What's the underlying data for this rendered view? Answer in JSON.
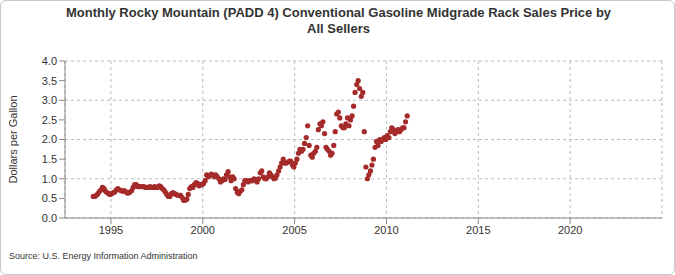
{
  "chart_data": {
    "type": "scatter",
    "title": "Monthly Rocky Mountain (PADD 4) Conventional Gasoline Midgrade Rack Sales Price by All Sellers",
    "y_label": "Dollars per Gallon",
    "source": "Source: U.S. Energy Information Administration",
    "x": [
      1994.04,
      1994.13,
      1994.21,
      1994.29,
      1994.38,
      1994.46,
      1994.54,
      1994.63,
      1994.71,
      1994.79,
      1994.88,
      1994.96,
      1995.04,
      1995.13,
      1995.21,
      1995.29,
      1995.38,
      1995.46,
      1995.54,
      1995.63,
      1995.71,
      1995.79,
      1995.88,
      1995.96,
      1996.04,
      1996.13,
      1996.21,
      1996.29,
      1996.38,
      1996.46,
      1996.54,
      1996.63,
      1996.71,
      1996.79,
      1996.88,
      1996.96,
      1997.04,
      1997.13,
      1997.21,
      1997.29,
      1997.38,
      1997.46,
      1997.54,
      1997.63,
      1997.71,
      1997.79,
      1997.88,
      1997.96,
      1998.04,
      1998.13,
      1998.21,
      1998.29,
      1998.38,
      1998.46,
      1998.54,
      1998.63,
      1998.71,
      1998.79,
      1998.88,
      1998.96,
      1999.04,
      1999.13,
      1999.21,
      1999.29,
      1999.38,
      1999.46,
      1999.54,
      1999.63,
      1999.71,
      1999.79,
      1999.88,
      1999.96,
      2000.04,
      2000.13,
      2000.21,
      2000.29,
      2000.38,
      2000.46,
      2000.54,
      2000.63,
      2000.71,
      2000.79,
      2000.88,
      2000.96,
      2001.04,
      2001.13,
      2001.21,
      2001.29,
      2001.38,
      2001.46,
      2001.54,
      2001.63,
      2001.71,
      2001.79,
      2001.88,
      2001.96,
      2002.04,
      2002.13,
      2002.21,
      2002.29,
      2002.38,
      2002.46,
      2002.54,
      2002.63,
      2002.71,
      2002.79,
      2002.88,
      2002.96,
      2003.04,
      2003.13,
      2003.21,
      2003.29,
      2003.38,
      2003.46,
      2003.54,
      2003.63,
      2003.71,
      2003.79,
      2003.88,
      2003.96,
      2004.04,
      2004.13,
      2004.21,
      2004.29,
      2004.38,
      2004.46,
      2004.54,
      2004.63,
      2004.71,
      2004.79,
      2004.88,
      2004.96,
      2005.04,
      2005.13,
      2005.21,
      2005.29,
      2005.38,
      2005.46,
      2005.54,
      2005.63,
      2005.71,
      2005.79,
      2005.88,
      2005.96,
      2006.04,
      2006.13,
      2006.21,
      2006.29,
      2006.38,
      2006.46,
      2006.54,
      2006.63,
      2006.71,
      2006.79,
      2006.88,
      2006.96,
      2007.04,
      2007.13,
      2007.21,
      2007.29,
      2007.38,
      2007.46,
      2007.54,
      2007.63,
      2007.71,
      2007.79,
      2007.88,
      2007.96,
      2008.04,
      2008.13,
      2008.21,
      2008.29,
      2008.38,
      2008.46,
      2008.54,
      2008.63,
      2008.71,
      2008.79,
      2008.88,
      2008.96,
      2009.04,
      2009.13,
      2009.21,
      2009.29,
      2009.38,
      2009.46,
      2009.54,
      2009.63,
      2009.71,
      2009.79,
      2009.88,
      2009.96,
      2010.04,
      2010.13,
      2010.21,
      2010.29,
      2010.38,
      2010.46,
      2010.54,
      2010.63,
      2010.71,
      2010.79,
      2010.88,
      2010.96,
      2011.04,
      2011.13
    ],
    "values": [
      0.55,
      0.55,
      0.58,
      0.62,
      0.68,
      0.72,
      0.78,
      0.75,
      0.68,
      0.65,
      0.62,
      0.6,
      0.62,
      0.65,
      0.66,
      0.72,
      0.75,
      0.72,
      0.7,
      0.68,
      0.7,
      0.68,
      0.64,
      0.64,
      0.66,
      0.7,
      0.78,
      0.85,
      0.85,
      0.8,
      0.8,
      0.8,
      0.8,
      0.8,
      0.78,
      0.78,
      0.78,
      0.8,
      0.78,
      0.78,
      0.8,
      0.78,
      0.78,
      0.82,
      0.8,
      0.75,
      0.72,
      0.66,
      0.6,
      0.55,
      0.55,
      0.62,
      0.65,
      0.62,
      0.6,
      0.58,
      0.58,
      0.58,
      0.52,
      0.45,
      0.45,
      0.48,
      0.6,
      0.75,
      0.8,
      0.78,
      0.85,
      0.9,
      0.88,
      0.82,
      0.85,
      0.85,
      0.88,
      0.95,
      1.1,
      1.05,
      1.08,
      1.12,
      1.1,
      1.05,
      1.1,
      1.05,
      1.0,
      0.92,
      0.95,
      1.0,
      0.98,
      1.1,
      1.18,
      1.05,
      0.95,
      1.05,
      1.0,
      0.75,
      0.65,
      0.62,
      0.68,
      0.72,
      0.85,
      0.95,
      0.95,
      0.92,
      0.95,
      0.95,
      0.95,
      1.0,
      0.98,
      0.92,
      1.0,
      1.15,
      1.2,
      1.05,
      1.0,
      1.0,
      1.05,
      1.15,
      1.1,
      1.05,
      1.0,
      1.02,
      1.1,
      1.2,
      1.3,
      1.4,
      1.5,
      1.4,
      1.4,
      1.42,
      1.45,
      1.45,
      1.35,
      1.3,
      1.4,
      1.5,
      1.65,
      1.75,
      1.7,
      1.75,
      1.9,
      2.05,
      2.35,
      1.85,
      1.6,
      1.55,
      1.65,
      1.7,
      1.8,
      2.25,
      2.4,
      2.35,
      2.45,
      2.15,
      1.8,
      1.75,
      1.7,
      1.6,
      1.65,
      1.85,
      2.2,
      2.65,
      2.7,
      2.55,
      2.35,
      2.3,
      2.3,
      2.4,
      2.55,
      2.35,
      2.5,
      2.6,
      2.85,
      3.2,
      3.4,
      3.5,
      3.3,
      3.1,
      3.2,
      2.2,
      1.3,
      1.0,
      1.1,
      1.2,
      1.35,
      1.5,
      1.8,
      1.95,
      1.85,
      2.0,
      1.95,
      2.0,
      2.05,
      2.0,
      2.1,
      2.05,
      2.2,
      2.3,
      2.25,
      2.15,
      2.2,
      2.25,
      2.2,
      2.25,
      2.3,
      2.3,
      2.45,
      2.6
    ],
    "color": "#a52a2a",
    "marker": "circle",
    "xlim": [
      1992.5,
      2025
    ],
    "xticks": [
      1995,
      2000,
      2005,
      2010,
      2015,
      2020
    ],
    "ylim": [
      0,
      4
    ],
    "yticks": [
      {
        "value": 0,
        "label": "0.0"
      },
      {
        "value": 0.5,
        "label": "0.5"
      },
      {
        "value": 1,
        "label": "1.0"
      },
      {
        "value": 1.5,
        "label": "1.5"
      },
      {
        "value": 2,
        "label": "2.0"
      },
      {
        "value": 2.5,
        "label": "2.5"
      },
      {
        "value": 3,
        "label": "3.0"
      },
      {
        "value": 3.5,
        "label": "3.5"
      },
      {
        "value": 4,
        "label": "4.0"
      }
    ],
    "grid": true
  }
}
